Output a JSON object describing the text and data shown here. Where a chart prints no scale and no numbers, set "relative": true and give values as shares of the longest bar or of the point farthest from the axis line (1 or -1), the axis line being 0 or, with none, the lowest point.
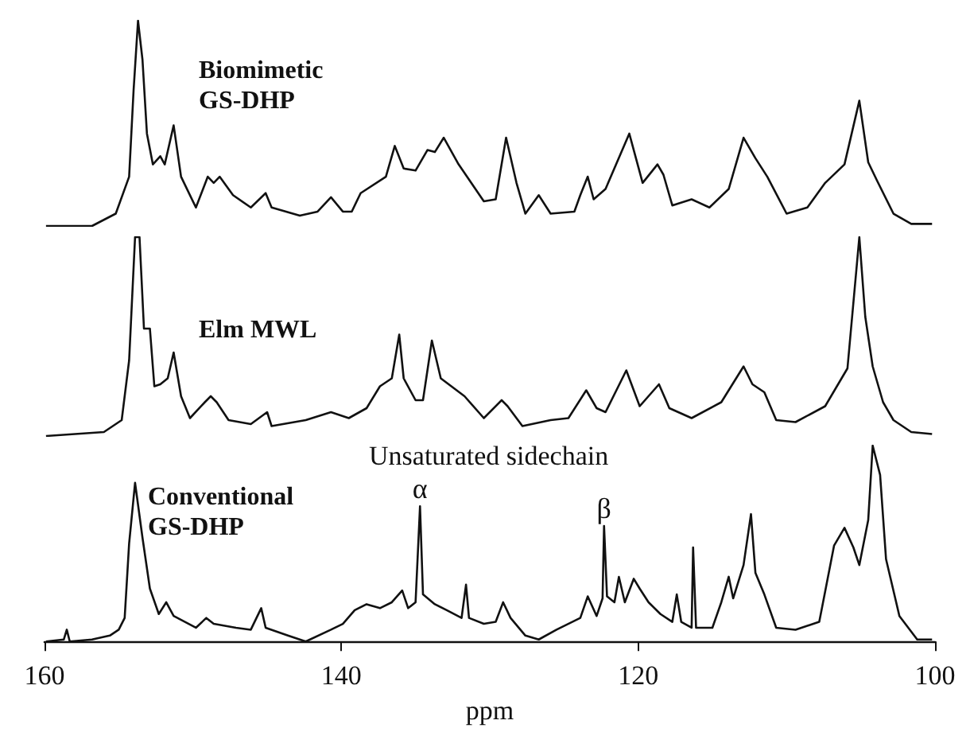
{
  "chart_data": [
    {
      "type": "line",
      "title": "Biomimetic GS-DHP",
      "relative": true,
      "xlim": [
        160,
        100
      ],
      "tick_labels": false,
      "x": [
        159.9,
        156.8,
        155.2,
        154.3,
        154.0,
        153.7,
        153.4,
        153.1,
        152.7,
        152.2,
        151.9,
        151.3,
        150.8,
        149.8,
        149.0,
        148.6,
        148.2,
        147.3,
        146.1,
        145.1,
        144.7,
        142.8,
        141.6,
        140.7,
        139.9,
        139.3,
        138.7,
        137.0,
        136.4,
        135.8,
        135.0,
        134.2,
        133.7,
        133.1,
        132.1,
        130.4,
        129.6,
        128.9,
        128.2,
        127.6,
        126.7,
        125.9,
        124.3,
        123.9,
        123.4,
        123.0,
        122.2,
        120.6,
        119.7,
        118.7,
        118.3,
        117.7,
        116.4,
        115.2,
        113.9,
        112.9,
        112.1,
        111.3,
        110.0,
        108.6,
        107.4,
        106.1,
        105.1,
        104.5,
        103.9,
        102.8,
        101.6,
        100.2
      ],
      "series": [
        {
          "color": "#111111",
          "values": [
            0,
            0,
            0.06,
            0.24,
            0.66,
            1,
            0.81,
            0.45,
            0.3,
            0.34,
            0.3,
            0.49,
            0.24,
            0.09,
            0.24,
            0.21,
            0.24,
            0.15,
            0.09,
            0.16,
            0.09,
            0.05,
            0.07,
            0.14,
            0.07,
            0.07,
            0.16,
            0.24,
            0.39,
            0.28,
            0.27,
            0.37,
            0.36,
            0.43,
            0.3,
            0.12,
            0.13,
            0.43,
            0.21,
            0.06,
            0.15,
            0.06,
            0.07,
            0.15,
            0.24,
            0.13,
            0.18,
            0.45,
            0.21,
            0.3,
            0.25,
            0.1,
            0.13,
            0.09,
            0.18,
            0.43,
            0.33,
            0.24,
            0.06,
            0.09,
            0.21,
            0.3,
            0.61,
            0.31,
            0.22,
            0.06,
            0.01,
            0.01
          ]
        }
      ]
    },
    {
      "type": "line",
      "title": "Elm MWL",
      "relative": true,
      "xlim": [
        160,
        100
      ],
      "tick_labels": false,
      "x": [
        159.9,
        156.0,
        154.8,
        154.3,
        153.9,
        153.6,
        153.3,
        152.9,
        152.6,
        152.2,
        151.7,
        151.3,
        150.8,
        150.2,
        149.2,
        148.8,
        148.4,
        147.6,
        146.1,
        145.0,
        144.7,
        142.4,
        140.7,
        139.5,
        138.3,
        137.4,
        136.6,
        136.1,
        135.8,
        135.0,
        134.5,
        133.9,
        133.3,
        131.7,
        130.4,
        129.2,
        128.8,
        127.8,
        125.9,
        124.7,
        123.5,
        122.8,
        122.2,
        120.8,
        119.9,
        118.6,
        117.9,
        116.4,
        114.4,
        112.9,
        112.3,
        111.5,
        110.7,
        109.4,
        107.4,
        105.9,
        105.1,
        104.7,
        104.2,
        103.5,
        102.8,
        101.6,
        100.2
      ],
      "series": [
        {
          "color": "#111111",
          "values": [
            0,
            0.02,
            0.08,
            0.38,
            1,
            1,
            0.54,
            0.54,
            0.25,
            0.26,
            0.29,
            0.42,
            0.2,
            0.09,
            0.17,
            0.2,
            0.17,
            0.08,
            0.06,
            0.12,
            0.05,
            0.08,
            0.12,
            0.09,
            0.14,
            0.25,
            0.29,
            0.51,
            0.29,
            0.18,
            0.18,
            0.48,
            0.29,
            0.2,
            0.09,
            0.18,
            0.15,
            0.05,
            0.08,
            0.09,
            0.23,
            0.14,
            0.12,
            0.33,
            0.15,
            0.26,
            0.14,
            0.09,
            0.17,
            0.35,
            0.26,
            0.22,
            0.08,
            0.07,
            0.15,
            0.34,
            1,
            0.6,
            0.35,
            0.17,
            0.08,
            0.02,
            0.01
          ]
        }
      ]
    },
    {
      "type": "line",
      "title": "Conventional GS-DHP",
      "xlabel": "ppm",
      "relative": true,
      "xlim": [
        160,
        100
      ],
      "xticks": [
        160,
        140,
        120,
        100
      ],
      "tick_labels": "x",
      "annotations": [
        "Unsaturated sidechain",
        {
          "text": "α",
          "x": 134.7,
          "y": 0.69
        },
        {
          "text": "β",
          "x": 122.3,
          "y": 0.59
        }
      ],
      "x": [
        159.9,
        158.7,
        158.5,
        158.3,
        156.8,
        155.6,
        155.0,
        154.6,
        154.3,
        153.9,
        153.4,
        152.9,
        152.3,
        151.8,
        151.3,
        149.8,
        149.1,
        148.6,
        147.1,
        146.1,
        145.4,
        145.1,
        143.6,
        142.4,
        140.7,
        139.9,
        139.1,
        138.3,
        137.4,
        136.6,
        135.9,
        135.5,
        135.0,
        134.7,
        134.5,
        133.7,
        132.9,
        131.9,
        131.6,
        131.4,
        130.4,
        129.6,
        129.1,
        128.6,
        127.6,
        126.7,
        125.5,
        123.9,
        123.4,
        122.8,
        122.4,
        122.3,
        122.1,
        121.6,
        121.3,
        120.9,
        120.3,
        119.9,
        119.3,
        118.5,
        117.7,
        117.4,
        117.1,
        116.4,
        116.3,
        116.1,
        115.0,
        114.4,
        113.9,
        113.6,
        112.9,
        112.4,
        112.1,
        111.5,
        110.7,
        109.4,
        107.8,
        106.8,
        106.1,
        105.5,
        105.1,
        104.5,
        104.2,
        103.7,
        103.3,
        102.4,
        101.2,
        100.2
      ],
      "series": [
        {
          "color": "#111111",
          "values": [
            0,
            0.01,
            0.06,
            0,
            0.01,
            0.03,
            0.06,
            0.12,
            0.5,
            0.81,
            0.53,
            0.27,
            0.14,
            0.2,
            0.13,
            0.07,
            0.12,
            0.09,
            0.07,
            0.06,
            0.17,
            0.07,
            0.03,
            0,
            0.06,
            0.09,
            0.16,
            0.19,
            0.17,
            0.2,
            0.26,
            0.17,
            0.2,
            0.69,
            0.24,
            0.19,
            0.16,
            0.12,
            0.29,
            0.12,
            0.09,
            0.1,
            0.2,
            0.12,
            0.03,
            0.01,
            0.06,
            0.12,
            0.23,
            0.13,
            0.22,
            0.59,
            0.23,
            0.2,
            0.33,
            0.2,
            0.32,
            0.27,
            0.2,
            0.14,
            0.1,
            0.24,
            0.1,
            0.07,
            0.48,
            0.07,
            0.07,
            0.2,
            0.33,
            0.22,
            0.39,
            0.65,
            0.35,
            0.24,
            0.07,
            0.06,
            0.1,
            0.49,
            0.58,
            0.48,
            0.39,
            0.62,
            1,
            0.85,
            0.42,
            0.13,
            0.01,
            0.01
          ]
        }
      ]
    }
  ]
}
